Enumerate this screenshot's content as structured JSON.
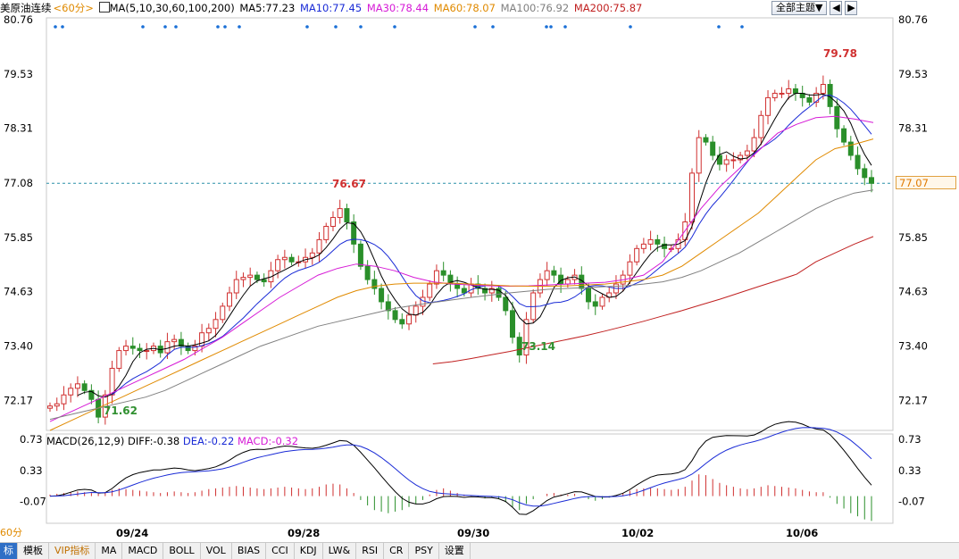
{
  "header": {
    "symbol": "美原油连续",
    "period": "<60分>",
    "ma_params": "MA(5,10,30,60,100,200)",
    "ma_values": [
      {
        "label": "MA5:77.23",
        "color": "#000000"
      },
      {
        "label": "MA10:77.45",
        "color": "#1a2bd6"
      },
      {
        "label": "MA30:78.44",
        "color": "#d61ad6"
      },
      {
        "label": "MA60:78.07",
        "color": "#e08a00"
      },
      {
        "label": "MA100:76.92",
        "color": "#808080"
      },
      {
        "label": "MA200:75.87",
        "color": "#c02020"
      }
    ]
  },
  "theme_controls": {
    "all_topics": "全部主题▼",
    "left": "◀",
    "right": "▶"
  },
  "price_badge": "77.07",
  "macd": {
    "title": "MACD(26,12,9)",
    "diff": "DIFF:-0.38",
    "dea": "DEA:-0.22",
    "macd": "MACD:-0.32",
    "axis": [
      "0.73",
      "0.33",
      "-0.07"
    ]
  },
  "period_tag": "60分",
  "toolbar": [
    "标",
    "模板",
    "VIP指标",
    "MA",
    "MACD",
    "BOLL",
    "VOL",
    "BIAS",
    "CCI",
    "KDJ",
    "LW&",
    "RSI",
    "CR",
    "PSY",
    "设置"
  ],
  "chart_data": {
    "type": "candlestick",
    "price_axis": [
      "80.76",
      "79.53",
      "78.31",
      "77.08",
      "75.85",
      "74.63",
      "73.40",
      "72.17"
    ],
    "ylim": [
      71.5,
      80.8
    ],
    "x_labels": [
      "09/24",
      "09/28",
      "09/30",
      "10/02",
      "10/06"
    ],
    "annotations": [
      {
        "text": "79.78",
        "color": "#d03030"
      },
      {
        "text": "76.67",
        "color": "#d03030"
      },
      {
        "text": "73.14",
        "color": "#309030"
      },
      {
        "text": "71.62",
        "color": "#309030"
      }
    ],
    "last_price": 77.07,
    "closes": [
      72.05,
      72.1,
      72.3,
      72.45,
      72.55,
      72.4,
      72.2,
      71.8,
      72.3,
      72.9,
      73.3,
      73.4,
      73.35,
      73.3,
      73.3,
      73.4,
      73.25,
      73.5,
      73.55,
      73.4,
      73.3,
      73.4,
      73.7,
      73.8,
      74.0,
      74.3,
      74.6,
      74.9,
      74.95,
      75.0,
      74.9,
      74.85,
      75.1,
      75.35,
      75.4,
      75.3,
      75.3,
      75.4,
      75.5,
      75.8,
      76.1,
      76.3,
      76.5,
      76.2,
      75.7,
      75.2,
      74.9,
      74.7,
      74.4,
      74.2,
      74.0,
      73.9,
      74.1,
      74.3,
      74.5,
      74.8,
      75.1,
      75.0,
      74.8,
      74.7,
      74.6,
      74.8,
      74.7,
      74.6,
      74.7,
      74.5,
      74.2,
      73.6,
      73.2,
      74.0,
      74.6,
      74.9,
      75.1,
      75.0,
      74.8,
      74.9,
      75.0,
      74.7,
      74.4,
      74.3,
      74.5,
      74.6,
      74.8,
      75.0,
      75.3,
      75.6,
      75.7,
      75.8,
      75.7,
      75.6,
      75.6,
      75.8,
      76.2,
      77.3,
      78.1,
      78.0,
      77.7,
      77.5,
      77.6,
      77.6,
      77.7,
      77.8,
      78.1,
      78.6,
      79.0,
      79.1,
      79.1,
      79.2,
      79.1,
      79.0,
      78.9,
      79.1,
      79.3,
      78.8,
      78.3,
      78.0,
      77.7,
      77.4,
      77.2,
      77.07
    ],
    "ma_series": [
      {
        "name": "MA30",
        "color": "#d61ad6",
        "values": [
          71.7,
          71.9,
          72.1,
          72.3,
          72.5,
          72.7,
          72.9,
          73.1,
          73.35,
          73.6,
          73.9,
          74.2,
          74.5,
          74.75,
          75.0,
          75.15,
          75.25,
          75.2,
          75.1,
          74.95,
          74.85,
          74.8,
          74.78,
          74.76,
          74.75,
          74.76,
          74.78,
          74.8,
          74.82,
          74.84,
          74.9,
          75.0,
          75.3,
          75.9,
          76.5,
          77.0,
          77.4,
          77.8,
          78.2,
          78.4,
          78.55,
          78.58,
          78.52,
          78.44
        ]
      },
      {
        "name": "MA60",
        "color": "#e08a00",
        "values": [
          71.5,
          71.7,
          71.9,
          72.1,
          72.3,
          72.5,
          72.7,
          72.9,
          73.1,
          73.3,
          73.5,
          73.7,
          73.9,
          74.1,
          74.3,
          74.5,
          74.65,
          74.75,
          74.8,
          74.82,
          74.82,
          74.82,
          74.8,
          74.78,
          74.76,
          74.75,
          74.75,
          74.76,
          74.78,
          74.8,
          74.85,
          74.9,
          75.0,
          75.2,
          75.5,
          75.8,
          76.1,
          76.4,
          76.8,
          77.2,
          77.6,
          77.85,
          77.95,
          78.07
        ]
      },
      {
        "name": "MA100",
        "color": "#808080",
        "values": [
          71.75,
          71.85,
          71.95,
          72.05,
          72.15,
          72.25,
          72.4,
          72.6,
          72.8,
          73.0,
          73.2,
          73.4,
          73.55,
          73.7,
          73.85,
          73.95,
          74.05,
          74.15,
          74.25,
          74.32,
          74.38,
          74.44,
          74.5,
          74.55,
          74.6,
          74.64,
          74.68,
          74.7,
          74.72,
          74.74,
          74.76,
          74.8,
          74.85,
          74.95,
          75.1,
          75.3,
          75.5,
          75.75,
          76.0,
          76.25,
          76.5,
          76.7,
          76.85,
          76.92
        ]
      },
      {
        "name": "MA200",
        "color": "#c02020",
        "values": [
          null,
          null,
          null,
          null,
          null,
          null,
          null,
          null,
          null,
          null,
          null,
          null,
          null,
          null,
          null,
          null,
          null,
          null,
          null,
          null,
          73.0,
          73.05,
          73.12,
          73.2,
          73.28,
          73.37,
          73.46,
          73.55,
          73.64,
          73.74,
          73.85,
          73.96,
          74.08,
          74.2,
          74.33,
          74.46,
          74.6,
          74.74,
          74.88,
          75.02,
          75.3,
          75.5,
          75.7,
          75.87
        ]
      }
    ],
    "macd_hist": [
      0.02,
      0.03,
      0.04,
      0.05,
      0.06,
      0.05,
      0.04,
      0.03,
      0.05,
      0.08,
      0.1,
      0.09,
      0.08,
      0.07,
      0.06,
      0.05,
      0.04,
      0.05,
      0.06,
      0.05,
      0.04,
      0.05,
      0.07,
      0.09,
      0.1,
      0.11,
      0.12,
      0.13,
      0.12,
      0.11,
      0.1,
      0.09,
      0.1,
      0.11,
      0.12,
      0.11,
      0.1,
      0.09,
      0.1,
      0.12,
      0.15,
      0.16,
      0.15,
      0.1,
      0.04,
      -0.05,
      -0.12,
      -0.18,
      -0.2,
      -0.22,
      -0.2,
      -0.18,
      -0.14,
      -0.1,
      -0.05,
      0.02,
      0.08,
      0.1,
      0.07,
      0.04,
      0.02,
      0.01,
      -0.01,
      -0.03,
      -0.02,
      -0.04,
      -0.08,
      -0.14,
      -0.18,
      -0.1,
      -0.04,
      0.0,
      0.03,
      0.04,
      0.02,
      0.02,
      0.03,
      0.0,
      -0.04,
      -0.06,
      -0.04,
      -0.02,
      0.01,
      0.04,
      0.07,
      0.09,
      0.1,
      0.11,
      0.1,
      0.09,
      0.08,
      0.09,
      0.12,
      0.2,
      0.28,
      0.27,
      0.22,
      0.17,
      0.14,
      0.12,
      0.1,
      0.09,
      0.1,
      0.12,
      0.14,
      0.13,
      0.12,
      0.11,
      0.1,
      0.08,
      0.06,
      0.05,
      0.05,
      -0.02,
      -0.1,
      -0.16,
      -0.22,
      -0.26,
      -0.3,
      -0.32
    ]
  }
}
